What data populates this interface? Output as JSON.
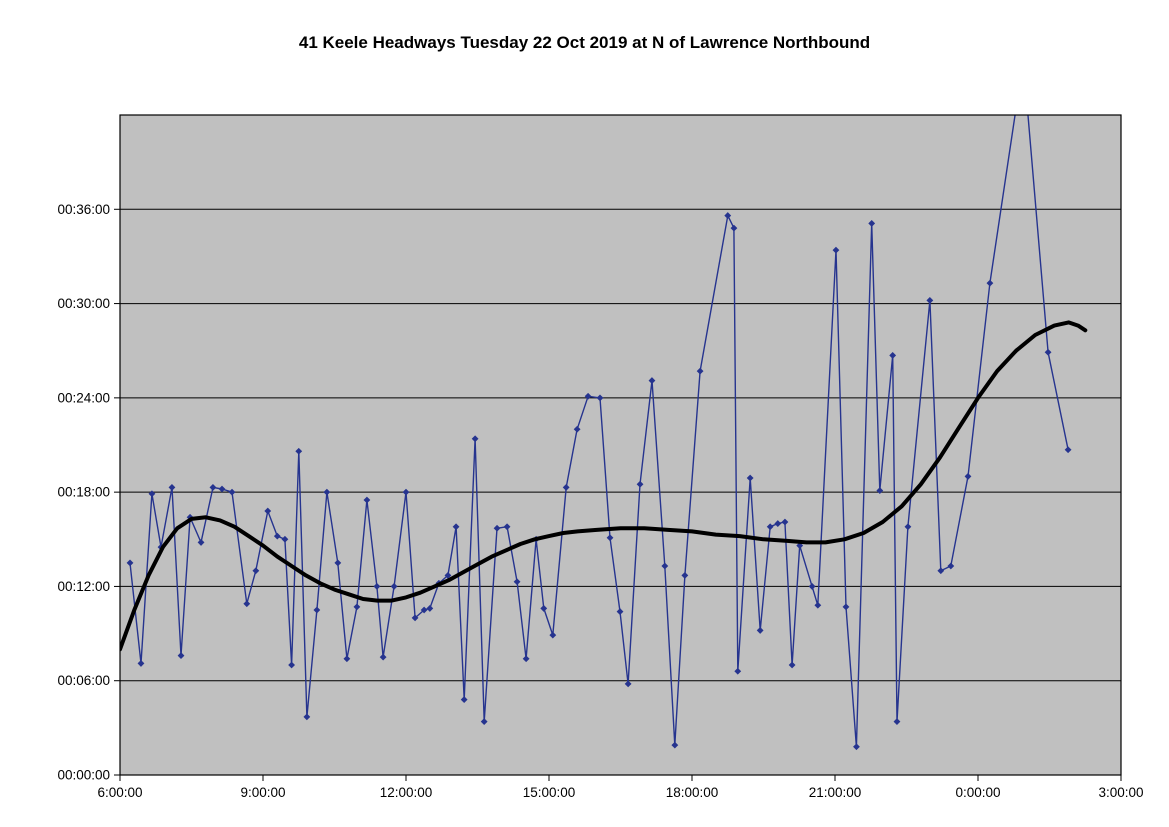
{
  "chart_data": {
    "type": "line",
    "title": "41 Keele Headways Tuesday 22 Oct 2019 at N of Lawrence Northbound",
    "x_unit": "time_of_day_hours_since_midnight_24plus_is_next_day",
    "y_unit": "headway_minutes",
    "xlim": [
      6,
      27
    ],
    "ylim": [
      0,
      42
    ],
    "grid": "horizontal-only",
    "legend_position": "none",
    "x_ticks": [
      {
        "label": "6:00:00",
        "value": 6
      },
      {
        "label": "9:00:00",
        "value": 9
      },
      {
        "label": "12:00:00",
        "value": 12
      },
      {
        "label": "15:00:00",
        "value": 15
      },
      {
        "label": "18:00:00",
        "value": 18
      },
      {
        "label": "21:00:00",
        "value": 21
      },
      {
        "label": "0:00:00",
        "value": 24
      },
      {
        "label": "3:00:00",
        "value": 27
      }
    ],
    "y_ticks": [
      {
        "label": "00:00:00",
        "value": 0
      },
      {
        "label": "00:06:00",
        "value": 6
      },
      {
        "label": "00:12:00",
        "value": 12
      },
      {
        "label": "00:18:00",
        "value": 18
      },
      {
        "label": "00:24:00",
        "value": 24
      },
      {
        "label": "00:30:00",
        "value": 30
      },
      {
        "label": "00:36:00",
        "value": 36
      }
    ],
    "colors": {
      "plot_bg": "#C0C0C0",
      "plot_border": "#000000",
      "grid": "#000000",
      "series": "#26348F",
      "trend": "#000000",
      "title": "#000000"
    },
    "series": [
      {
        "name": "headways",
        "style": "line-with-diamond-markers",
        "line_width": 1.4,
        "marker": "diamond",
        "points": [
          [
            6.21,
            13.5
          ],
          [
            6.44,
            7.1
          ],
          [
            6.67,
            17.9
          ],
          [
            6.86,
            14.5
          ],
          [
            7.09,
            18.3
          ],
          [
            7.28,
            7.6
          ],
          [
            7.47,
            16.4
          ],
          [
            7.7,
            14.8
          ],
          [
            7.95,
            18.3
          ],
          [
            8.14,
            18.2
          ],
          [
            8.35,
            18.0
          ],
          [
            8.66,
            10.9
          ],
          [
            8.85,
            13.0
          ],
          [
            9.1,
            16.8
          ],
          [
            9.3,
            15.2
          ],
          [
            9.46,
            15.0
          ],
          [
            9.6,
            7.0
          ],
          [
            9.75,
            20.6
          ],
          [
            9.92,
            3.7
          ],
          [
            10.13,
            10.5
          ],
          [
            10.34,
            18.0
          ],
          [
            10.57,
            13.5
          ],
          [
            10.76,
            7.4
          ],
          [
            10.97,
            10.7
          ],
          [
            11.18,
            17.5
          ],
          [
            11.39,
            12.0
          ],
          [
            11.52,
            7.5
          ],
          [
            11.75,
            12.0
          ],
          [
            12.0,
            18.0
          ],
          [
            12.19,
            10.0
          ],
          [
            12.38,
            10.5
          ],
          [
            12.5,
            10.6
          ],
          [
            12.69,
            12.2
          ],
          [
            12.88,
            12.7
          ],
          [
            13.05,
            15.8
          ],
          [
            13.22,
            4.8
          ],
          [
            13.45,
            21.4
          ],
          [
            13.64,
            3.4
          ],
          [
            13.91,
            15.7
          ],
          [
            14.12,
            15.8
          ],
          [
            14.33,
            12.3
          ],
          [
            14.52,
            7.4
          ],
          [
            14.73,
            15.0
          ],
          [
            14.89,
            10.6
          ],
          [
            15.08,
            8.9
          ],
          [
            15.36,
            18.3
          ],
          [
            15.59,
            22.0
          ],
          [
            15.82,
            24.1
          ],
          [
            16.07,
            24.0
          ],
          [
            16.28,
            15.1
          ],
          [
            16.49,
            10.4
          ],
          [
            16.66,
            5.8
          ],
          [
            16.91,
            18.5
          ],
          [
            17.16,
            25.1
          ],
          [
            17.43,
            13.3
          ],
          [
            17.64,
            1.9
          ],
          [
            17.85,
            12.7
          ],
          [
            18.17,
            25.7
          ],
          [
            18.75,
            35.6
          ],
          [
            18.88,
            34.8
          ],
          [
            18.96,
            6.6
          ],
          [
            19.22,
            18.9
          ],
          [
            19.43,
            9.2
          ],
          [
            19.64,
            15.8
          ],
          [
            19.8,
            16.0
          ],
          [
            19.95,
            16.1
          ],
          [
            20.1,
            7.0
          ],
          [
            20.26,
            14.6
          ],
          [
            20.52,
            12.0
          ],
          [
            20.64,
            10.8
          ],
          [
            21.02,
            33.4
          ],
          [
            21.23,
            10.7
          ],
          [
            21.45,
            1.8
          ],
          [
            21.77,
            35.1
          ],
          [
            21.94,
            18.1
          ],
          [
            22.21,
            26.7
          ],
          [
            22.3,
            3.4
          ],
          [
            22.53,
            15.8
          ],
          [
            22.99,
            30.2
          ],
          [
            23.22,
            13.0
          ],
          [
            23.43,
            13.3
          ],
          [
            23.79,
            19.0
          ],
          [
            24.25,
            31.3
          ],
          [
            24.95,
            45.5
          ],
          [
            25.47,
            26.9
          ],
          [
            25.89,
            20.7
          ]
        ]
      },
      {
        "name": "trend",
        "style": "thick-smooth-line",
        "line_width": 4,
        "marker": "none",
        "points": [
          [
            6.0,
            8.0
          ],
          [
            6.3,
            10.5
          ],
          [
            6.6,
            12.7
          ],
          [
            6.9,
            14.5
          ],
          [
            7.2,
            15.7
          ],
          [
            7.5,
            16.3
          ],
          [
            7.8,
            16.4
          ],
          [
            8.1,
            16.2
          ],
          [
            8.4,
            15.8
          ],
          [
            8.7,
            15.2
          ],
          [
            9.0,
            14.6
          ],
          [
            9.3,
            13.9
          ],
          [
            9.6,
            13.3
          ],
          [
            9.9,
            12.7
          ],
          [
            10.2,
            12.2
          ],
          [
            10.5,
            11.8
          ],
          [
            10.8,
            11.5
          ],
          [
            11.1,
            11.2
          ],
          [
            11.4,
            11.1
          ],
          [
            11.7,
            11.1
          ],
          [
            12.0,
            11.3
          ],
          [
            12.3,
            11.6
          ],
          [
            12.6,
            12.0
          ],
          [
            12.9,
            12.4
          ],
          [
            13.2,
            12.9
          ],
          [
            13.5,
            13.4
          ],
          [
            13.8,
            13.9
          ],
          [
            14.1,
            14.3
          ],
          [
            14.4,
            14.7
          ],
          [
            14.7,
            15.0
          ],
          [
            15.0,
            15.2
          ],
          [
            15.3,
            15.4
          ],
          [
            15.6,
            15.5
          ],
          [
            16.0,
            15.6
          ],
          [
            16.5,
            15.7
          ],
          [
            17.0,
            15.7
          ],
          [
            17.5,
            15.6
          ],
          [
            18.0,
            15.5
          ],
          [
            18.5,
            15.3
          ],
          [
            19.0,
            15.2
          ],
          [
            19.5,
            15.0
          ],
          [
            20.0,
            14.9
          ],
          [
            20.4,
            14.8
          ],
          [
            20.8,
            14.8
          ],
          [
            21.2,
            15.0
          ],
          [
            21.6,
            15.4
          ],
          [
            22.0,
            16.1
          ],
          [
            22.4,
            17.1
          ],
          [
            22.8,
            18.5
          ],
          [
            23.2,
            20.2
          ],
          [
            23.6,
            22.1
          ],
          [
            24.0,
            24.0
          ],
          [
            24.4,
            25.7
          ],
          [
            24.8,
            27.0
          ],
          [
            25.2,
            28.0
          ],
          [
            25.6,
            28.6
          ],
          [
            25.9,
            28.8
          ],
          [
            26.1,
            28.6
          ],
          [
            26.25,
            28.3
          ]
        ]
      }
    ]
  }
}
